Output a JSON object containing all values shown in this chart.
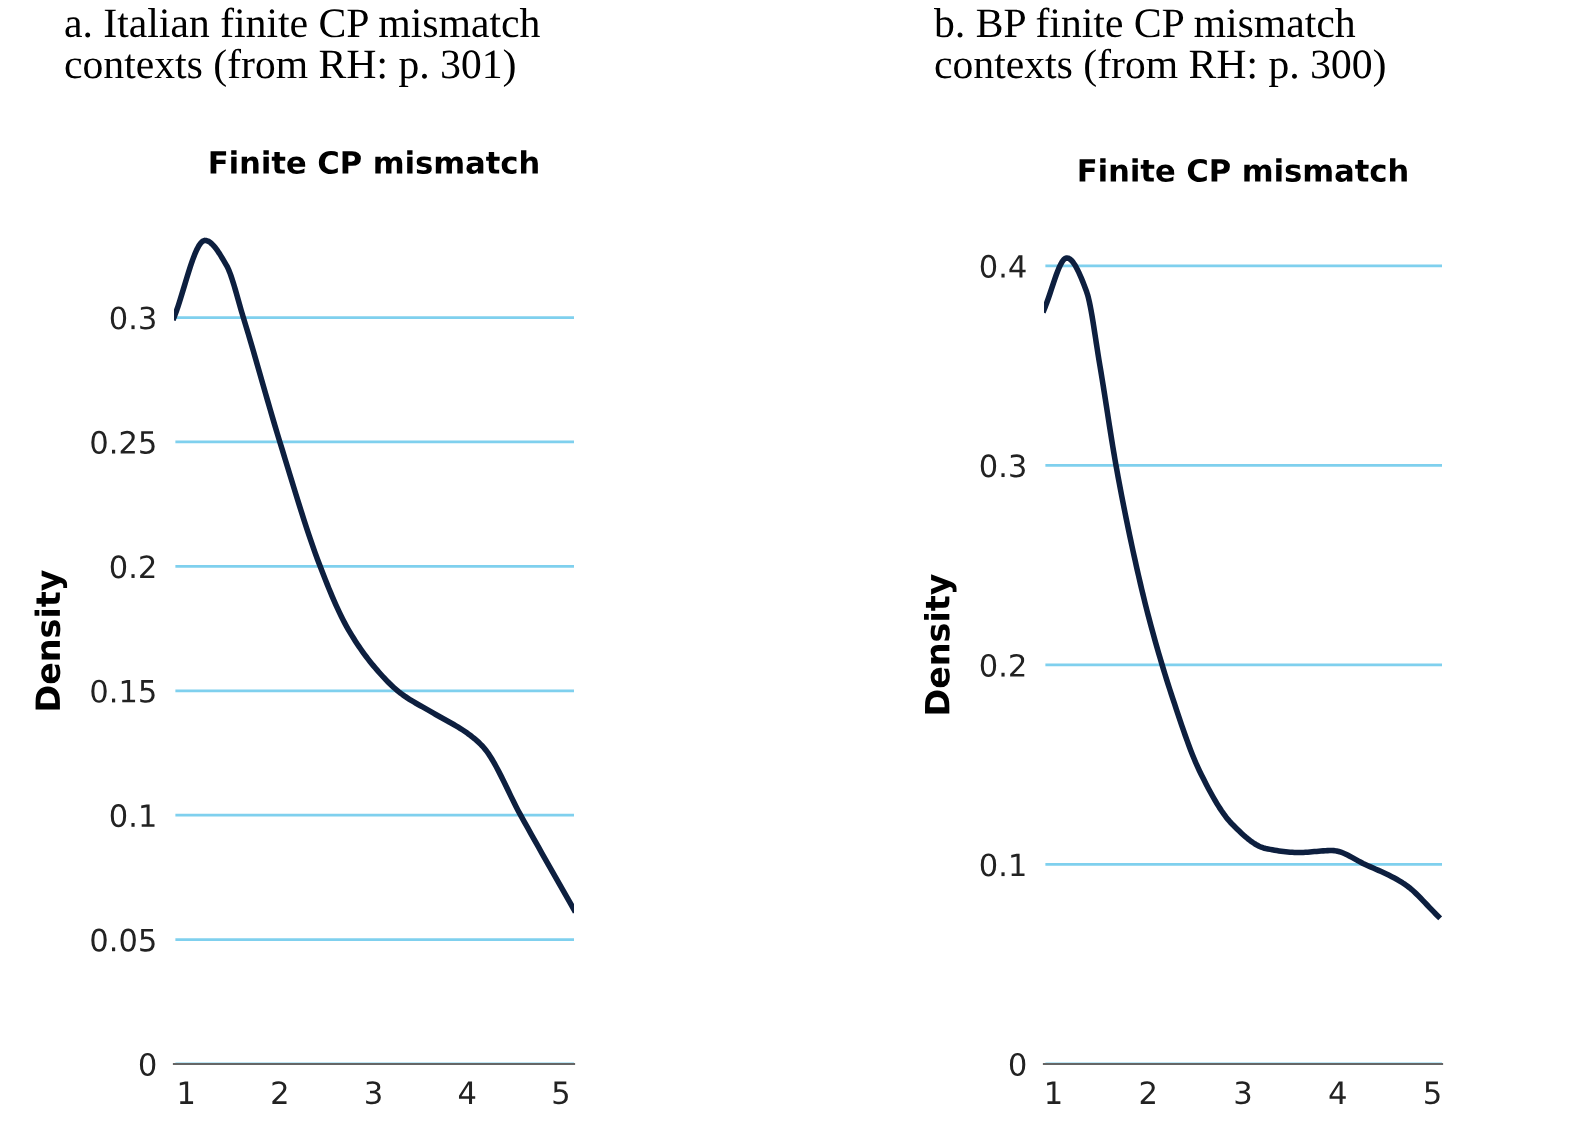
{
  "chart_data": [
    {
      "type": "line",
      "title": "a. Italian finite CP mismatch\ncontexts (from RH: p. 301)",
      "subtitle": "Finite CP mismatch",
      "ylabel": "Density",
      "x": [
        0.87,
        1.2,
        1.43,
        1.61,
        2.0,
        2.43,
        2.71,
        3.0,
        3.29,
        3.64,
        4.0,
        4.18,
        4.57,
        5.14
      ],
      "series": [
        {
          "color": "#0d1f3f",
          "values": [
            0.3,
            0.331,
            0.321,
            0.3,
            0.25,
            0.2,
            0.176,
            0.16,
            0.149,
            0.141,
            0.133,
            0.127,
            0.1,
            0.062
          ]
        }
      ],
      "xlim": [
        0.87,
        5.14
      ],
      "ylim": [
        0,
        0.34
      ],
      "xticks": [
        1,
        2,
        3,
        4,
        5
      ],
      "yticks": [
        0,
        0.05,
        0.1,
        0.15,
        0.2,
        0.25,
        0.3
      ],
      "grid": "y",
      "legend": false
    },
    {
      "type": "line",
      "title": "b. BP finite CP mismatch\ncontexts (from RH: p. 300)",
      "subtitle": "Finite CP mismatch",
      "ylabel": "Density",
      "x": [
        0.9,
        1.14,
        1.35,
        1.49,
        1.66,
        1.84,
        2.01,
        2.26,
        2.54,
        2.89,
        3.24,
        3.59,
        3.94,
        4.29,
        4.71,
        5.06
      ],
      "series": [
        {
          "color": "#0d1f3f",
          "values": [
            0.378,
            0.404,
            0.387,
            0.35,
            0.3,
            0.257,
            0.223,
            0.183,
            0.147,
            0.12,
            0.108,
            0.106,
            0.107,
            0.1,
            0.09,
            0.074
          ]
        }
      ],
      "xlim": [
        0.9,
        5.1
      ],
      "ylim": [
        0,
        0.42
      ],
      "xticks": [
        1,
        2,
        3,
        4,
        5
      ],
      "yticks": [
        0,
        0.1,
        0.2,
        0.3,
        0.4
      ],
      "grid": "y",
      "legend": false
    }
  ]
}
